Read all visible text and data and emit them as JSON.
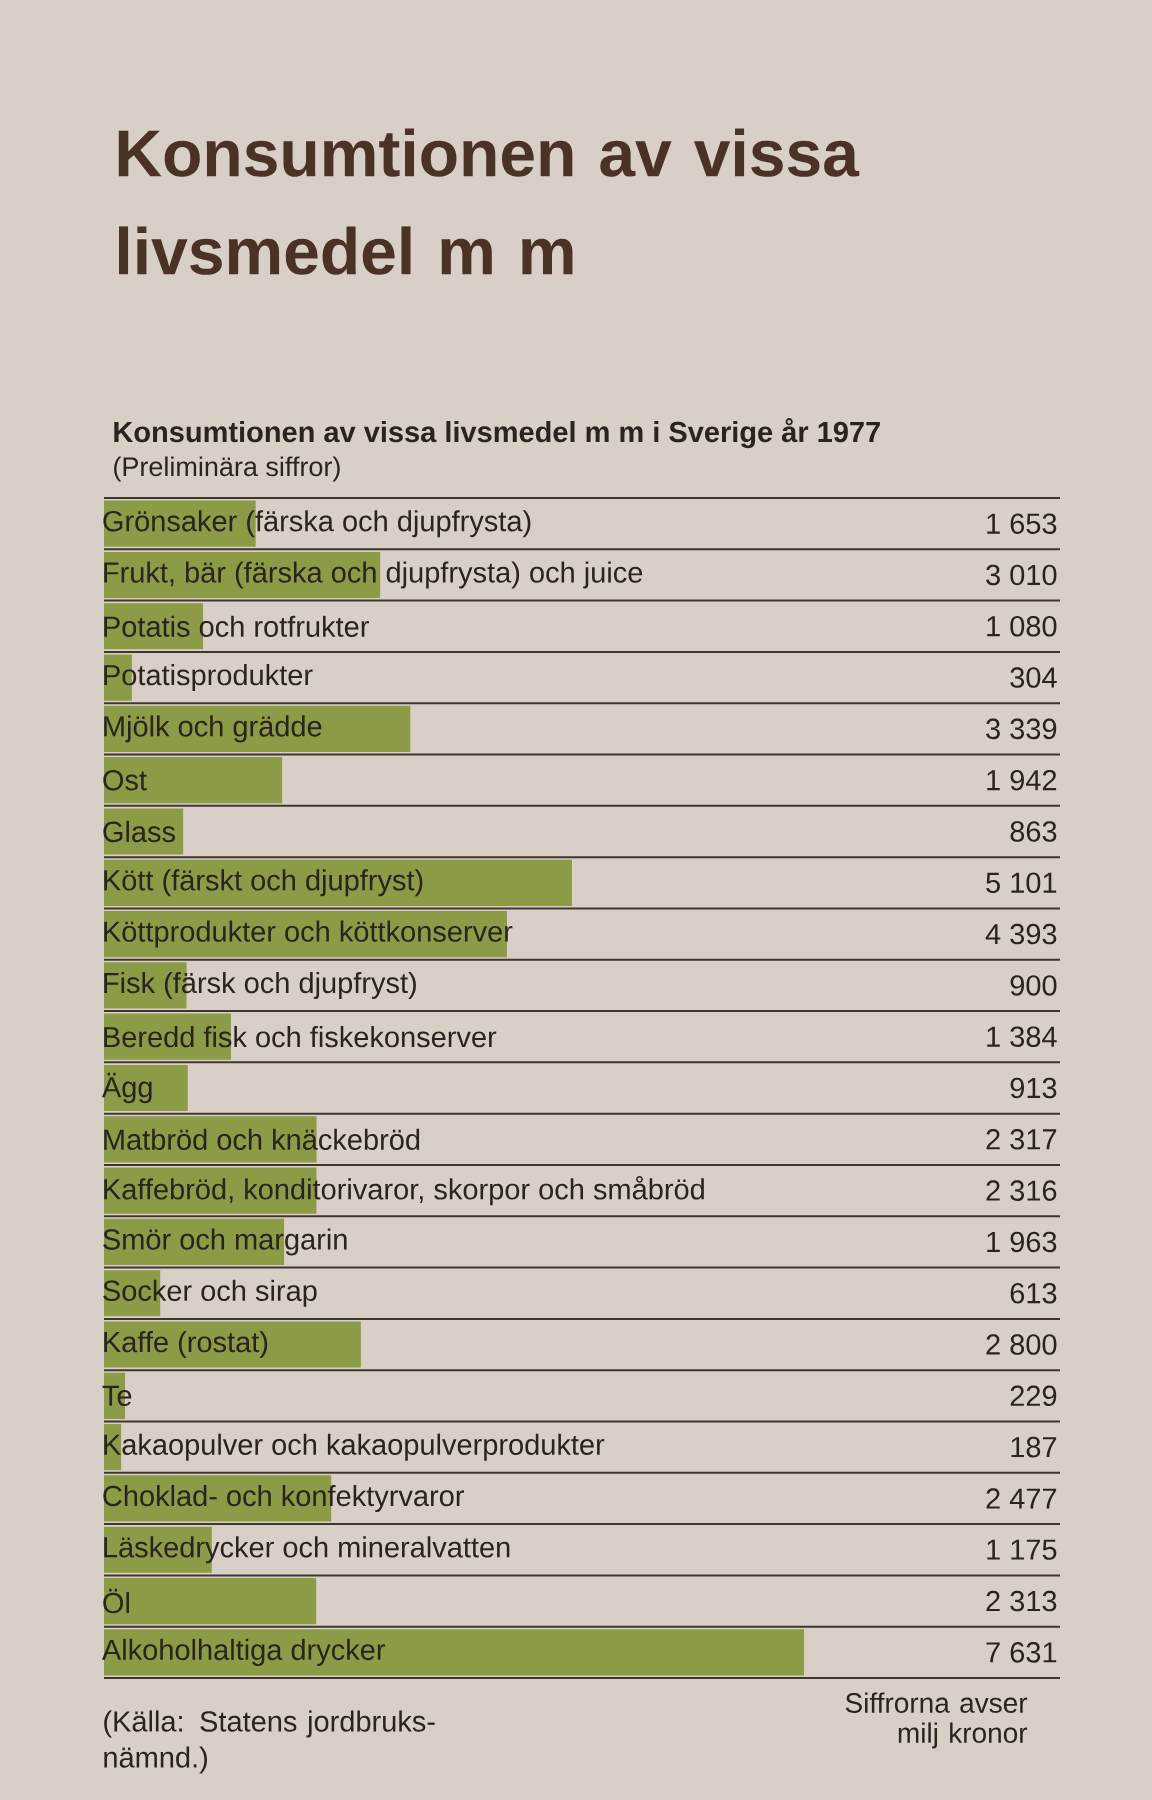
{
  "chart_data": {
    "type": "bar",
    "orientation": "horizontal",
    "title": "Konsumtionen av vissa livsmedel m m",
    "subtitle": "Konsumtionen av vissa livsmedel m m i Sverige år 1977",
    "annotations": [
      "(Preliminära siffror)",
      "(Källa: Statens jordbruks-nämnd.)",
      "Siffrorna avser milj kronor"
    ],
    "categories": [
      "Grönsaker (färska och djupfrysta)",
      "Frukt, bär (färska och djupfrysta) och juice",
      "Potatis och rotfrukter",
      "Potatisprodukter",
      "Mjölk och grädde",
      "Ost",
      "Glass",
      "Kött (färskt och djupfryst)",
      "Köttprodukter och köttkonserver",
      "Fisk (färsk och djupfryst)",
      "Beredd fisk och fiskekonserver",
      "Ägg",
      "Matbröd och knäckebröd",
      "Kaffebröd, konditorivaror, skorpor och småbröd",
      "Smör och margarin",
      "Socker och sirap",
      "Kaffe (rostat)",
      "Te",
      "Kakaopulver och kakaopulverprodukter",
      "Choklad- och konfektyrvaror",
      "Läskedrycker och mineralvatten",
      "Öl",
      "Alkoholhaltiga drycker"
    ],
    "values": [
      1653,
      3010,
      1080,
      304,
      3339,
      1942,
      863,
      5101,
      4393,
      900,
      1384,
      913,
      2317,
      2316,
      1963,
      613,
      2800,
      229,
      187,
      2477,
      1175,
      2313,
      7631
    ],
    "value_labels": [
      "1 653",
      "3 010",
      "1 080",
      "304",
      "3 339",
      "1 942",
      "863",
      "5 101",
      "4 393",
      "900",
      "1 384",
      "913",
      "2 317",
      "2 316",
      "1 963",
      "613",
      "2 800",
      "229",
      "187",
      "2 477",
      "1 175",
      "2 313",
      "7 631"
    ],
    "color": "#8c9b45",
    "grid": "y",
    "tick_labels": "y"
  }
}
